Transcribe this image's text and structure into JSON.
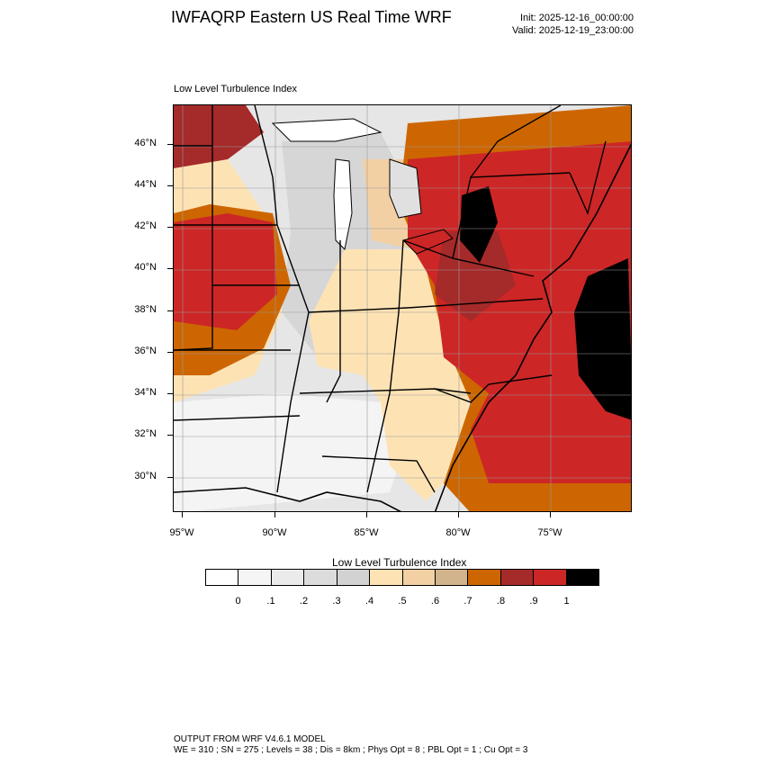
{
  "header": {
    "title": "IWFAQRP Eastern US Real Time WRF",
    "init": "Init: 2025-12-16_00:00:00",
    "valid": "Valid: 2025-12-19_23:00:00"
  },
  "map": {
    "subtitle": "Low Level Turbulence Index",
    "lat_labels": [
      "46°N",
      "44°N",
      "42°N",
      "40°N",
      "38°N",
      "36°N",
      "34°N",
      "32°N",
      "30°N"
    ],
    "lon_labels": [
      "95°W",
      "90°W",
      "85°W",
      "80°W",
      "75°W"
    ]
  },
  "colorbar": {
    "title": "Low Level Turbulence Index",
    "labels": [
      "0",
      ".1",
      ".2",
      ".3",
      ".4",
      ".5",
      ".6",
      ".7",
      ".8",
      ".9",
      "1"
    ],
    "colors": [
      "#ffffff",
      "#f5f5f5",
      "#ebebeb",
      "#dcdcdc",
      "#d2d2d2",
      "#fde3b4",
      "#f2d0a4",
      "#d2b48c",
      "#cd6600",
      "#a52a2a",
      "#cd2626",
      "#000000"
    ]
  },
  "footer": {
    "line1": "OUTPUT FROM WRF V4.6.1 MODEL",
    "line2": "WE = 310 ; SN = 275 ; Levels = 38 ; Dis = 8km ; Phys Opt = 8 ; PBL Opt = 1 ; Cu Opt = 3"
  }
}
